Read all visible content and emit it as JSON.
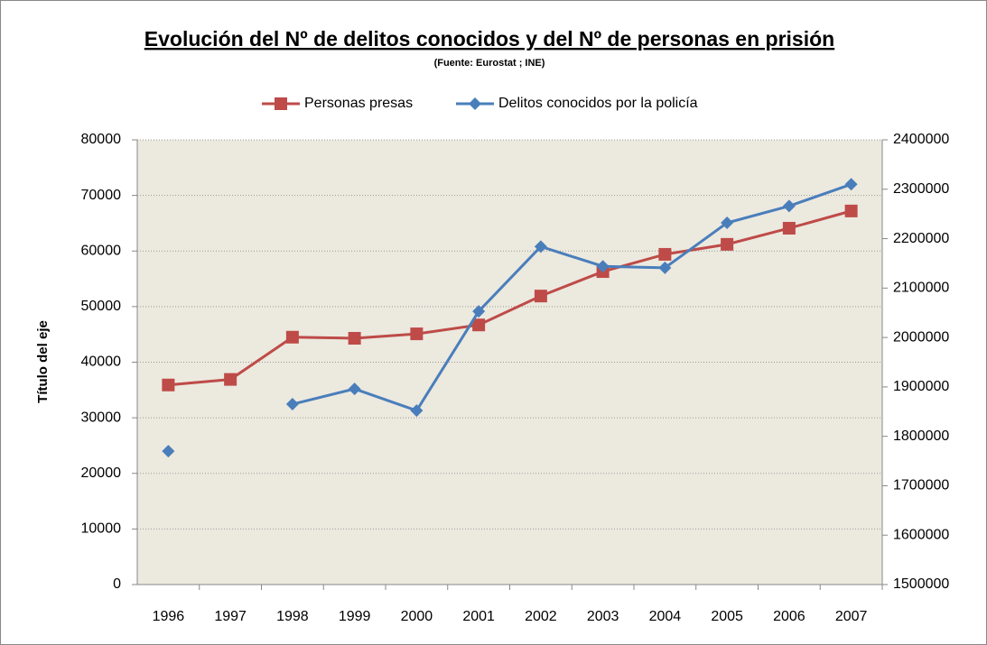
{
  "chart_data": {
    "type": "line",
    "title": "Evolución del Nº de delitos conocidos y del Nº de personas en prisión",
    "subtitle": "(Fuente: Eurostat ; INE)",
    "y_label": "Título del eje",
    "categories": [
      "1996",
      "1997",
      "1998",
      "1999",
      "2000",
      "2001",
      "2002",
      "2003",
      "2004",
      "2005",
      "2006",
      "2007"
    ],
    "series": [
      {
        "name": "Personas presas",
        "color": "#be4b48",
        "marker": "square",
        "axis": "y",
        "values": [
          35900,
          36900,
          44500,
          44300,
          45100,
          46700,
          51900,
          56300,
          59400,
          61200,
          64100,
          67200
        ]
      },
      {
        "name": "Delitos conocidos por la policía",
        "color": "#4a7ebb",
        "marker": "diamond",
        "axis": "y2",
        "values": [
          1770000,
          null,
          1865000,
          1896000,
          1852000,
          2053000,
          2184000,
          2144000,
          2141000,
          2232000,
          2266000,
          2310000
        ]
      }
    ],
    "ylim": [
      0,
      80000
    ],
    "yticks": [
      0,
      10000,
      20000,
      30000,
      40000,
      50000,
      60000,
      70000,
      80000
    ],
    "y2lim": [
      1500000,
      2400000
    ],
    "y2ticks": [
      1500000,
      1600000,
      1700000,
      1800000,
      1900000,
      2000000,
      2100000,
      2200000,
      2300000,
      2400000
    ],
    "grid": true,
    "legend": "top"
  }
}
